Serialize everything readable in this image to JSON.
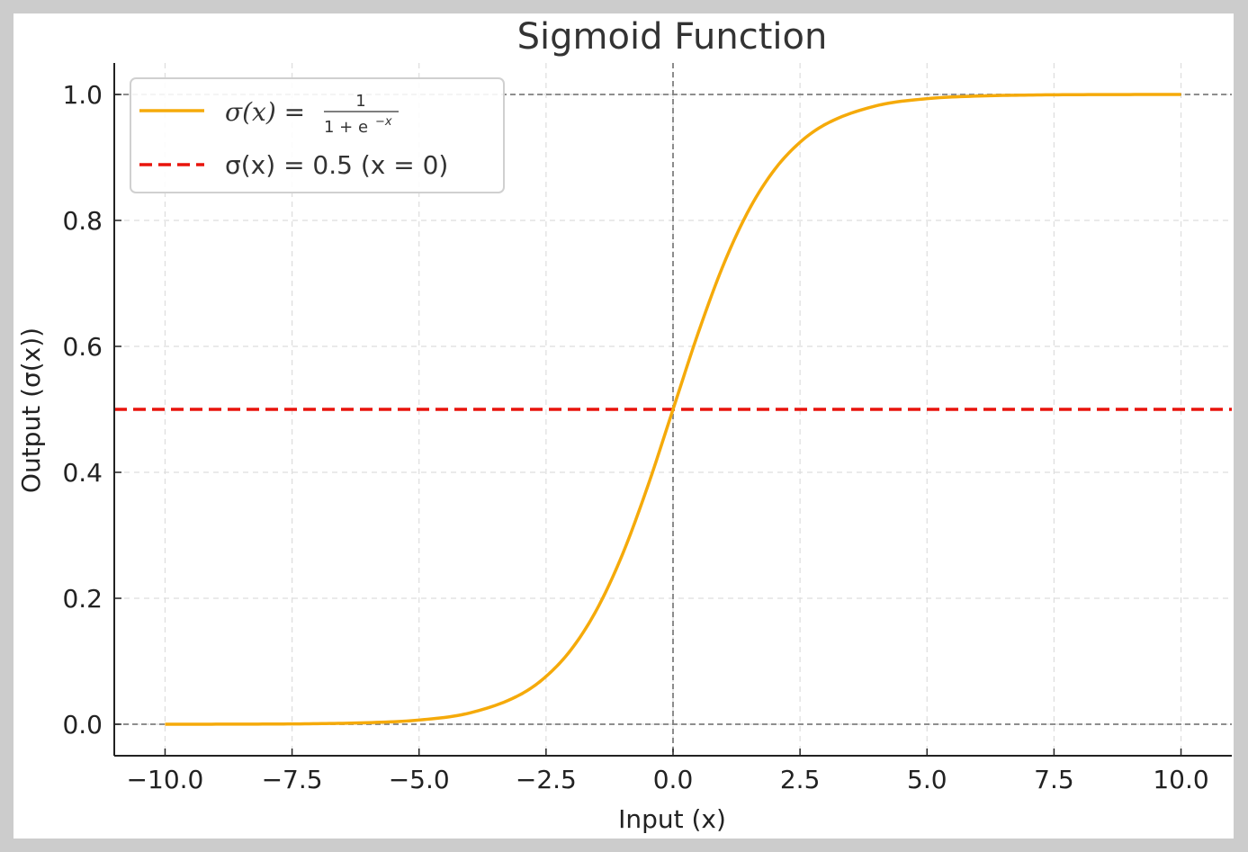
{
  "chart_data": {
    "type": "line",
    "title": "Sigmoid Function",
    "xlabel": "Input (x)",
    "ylabel": "Output (σ(x))",
    "xlim": [
      -11,
      11
    ],
    "ylim": [
      -0.05,
      1.05
    ],
    "x_ticks": [
      -10.0,
      -7.5,
      -5.0,
      -2.5,
      0.0,
      2.5,
      5.0,
      7.5,
      10.0
    ],
    "x_tick_labels": [
      "−10.0",
      "−7.5",
      "−5.0",
      "−2.5",
      "0.0",
      "2.5",
      "5.0",
      "7.5",
      "10.0"
    ],
    "y_ticks": [
      0.0,
      0.2,
      0.4,
      0.6,
      0.8,
      1.0
    ],
    "y_tick_labels": [
      "0.0",
      "0.2",
      "0.4",
      "0.6",
      "0.8",
      "1.0"
    ],
    "grid": true,
    "legend_position": "upper-left",
    "series": [
      {
        "name": "σ(x) = 1/(1+e^−x)",
        "style": "solid",
        "color": "#f5aa0a",
        "x": [
          -10,
          -9,
          -8,
          -7,
          -6,
          -5,
          -4,
          -3,
          -2.5,
          -2,
          -1.5,
          -1,
          -0.5,
          0,
          0.5,
          1,
          1.5,
          2,
          2.5,
          3,
          4,
          5,
          6,
          7,
          8,
          9,
          10
        ],
        "y": [
          0.0,
          0.0001,
          0.0003,
          0.0009,
          0.0025,
          0.0067,
          0.018,
          0.0474,
          0.0759,
          0.1192,
          0.1824,
          0.2689,
          0.3775,
          0.5,
          0.6225,
          0.7311,
          0.8176,
          0.8808,
          0.9241,
          0.9526,
          0.982,
          0.9933,
          0.9975,
          0.9991,
          0.9997,
          0.9999,
          1.0
        ]
      },
      {
        "name": "σ(x) = 0.5 (x = 0)",
        "style": "dashed",
        "color": "#e8140c",
        "y_const": 0.5
      }
    ],
    "reference_lines": {
      "horizontal": [
        0.0,
        1.0
      ],
      "vertical": [
        0.0
      ],
      "color": "#808080"
    }
  },
  "legend": {
    "entry1_math_prefix": "σ(x) =",
    "entry1_numerator": "1",
    "entry1_denominator": "1 + e",
    "entry1_exponent": "−x",
    "entry2_label": "σ(x) = 0.5 (x = 0)"
  }
}
